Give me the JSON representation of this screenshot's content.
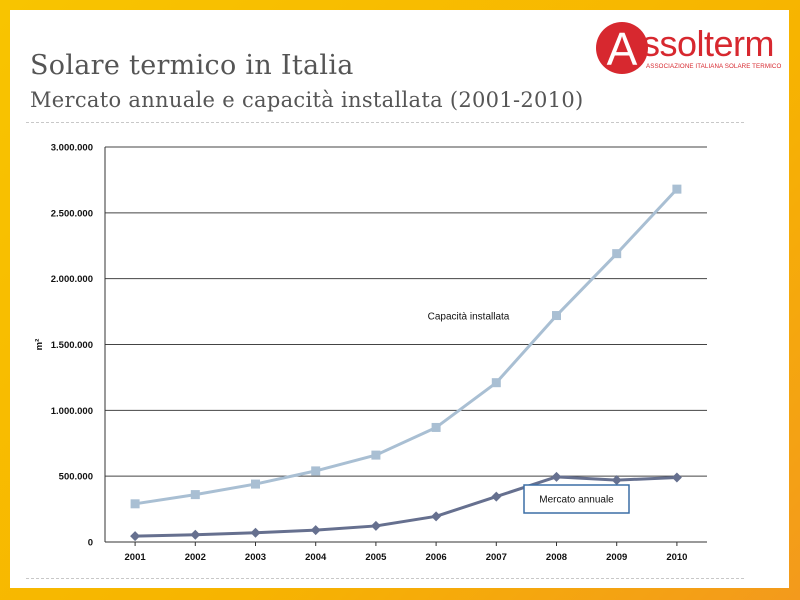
{
  "slide": {
    "title": "Solare termico in Italia",
    "subtitle": "Mercato annuale e capacità installata (2001-2010)"
  },
  "logo": {
    "mark": "A",
    "word": "ssolterm",
    "tagline": "ASSOCIAZIONE ITALIANA SOLARE TERMICO",
    "color": "#d7282f"
  },
  "chart_data": {
    "type": "line",
    "ylabel": "m²",
    "ylim": [
      0,
      3000000
    ],
    "yticks": [
      0,
      500000,
      1000000,
      1500000,
      2000000,
      2500000,
      3000000
    ],
    "ytick_labels": [
      "0",
      "500.000",
      "1.000.000",
      "1.500.000",
      "2.000.000",
      "2.500.000",
      "3.000.000"
    ],
    "x": [
      "2001",
      "2002",
      "2003",
      "2004",
      "2005",
      "2006",
      "2007",
      "2008",
      "2009",
      "2010"
    ],
    "grid": true,
    "series": [
      {
        "name": "Capacità installata",
        "marker": "square",
        "color": "#a9bfd3",
        "values": [
          290000,
          360000,
          440000,
          540000,
          660000,
          870000,
          1210000,
          1720000,
          2190000,
          2680000
        ]
      },
      {
        "name": "Mercato annuale",
        "marker": "diamond",
        "color": "#66708f",
        "values": [
          45000,
          55000,
          70000,
          90000,
          122000,
          195000,
          345000,
          495000,
          470000,
          490000
        ]
      }
    ]
  }
}
